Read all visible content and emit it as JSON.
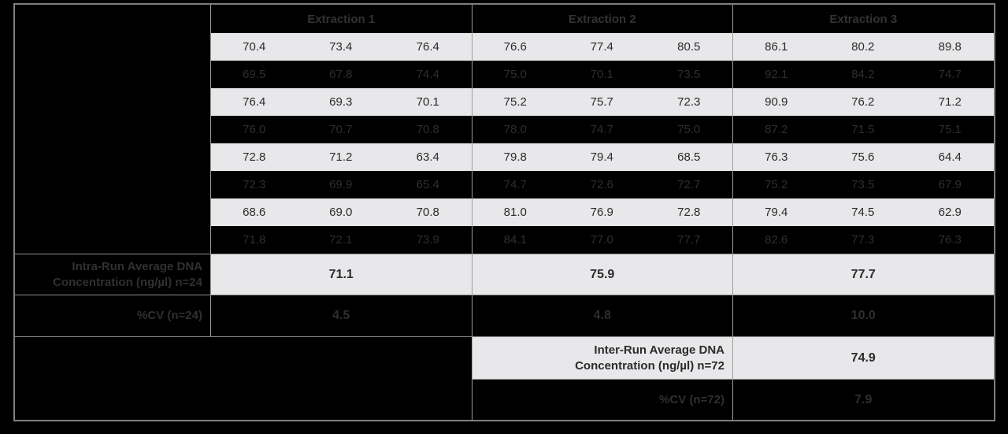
{
  "colors": {
    "page_bg": "#000000",
    "light_row_bg": "#e8e8ea",
    "dark_row_bg": "#000000",
    "light_row_text": "#2b2b2b",
    "dark_row_text": "#2e2e2e",
    "header_text": "#333333",
    "border_outer": "#7f7f7f",
    "border_inner": "#9c9c9c"
  },
  "chart_data": {
    "type": "table",
    "title": "",
    "group_headers": [
      "Extraction 1",
      "Extraction 2",
      "Extraction 3"
    ],
    "replicates_per_group": 3,
    "data_rows": [
      [
        "70.4",
        "73.4",
        "76.4",
        "76.6",
        "77.4",
        "80.5",
        "86.1",
        "80.2",
        "89.8"
      ],
      [
        "69.5",
        "67.8",
        "74.4",
        "75.0",
        "70.1",
        "73.5",
        "92.1",
        "84.2",
        "74.7"
      ],
      [
        "76.4",
        "69.3",
        "70.1",
        "75.2",
        "75.7",
        "72.3",
        "90.9",
        "76.2",
        "71.2"
      ],
      [
        "76.0",
        "70.7",
        "70.8",
        "78.0",
        "74.7",
        "75.0",
        "87.2",
        "71.5",
        "75.1"
      ],
      [
        "72.8",
        "71.2",
        "63.4",
        "79.8",
        "79.4",
        "68.5",
        "76.3",
        "75.6",
        "64.4"
      ],
      [
        "72.3",
        "69.9",
        "65.4",
        "74.7",
        "72.6",
        "72.7",
        "75.2",
        "73.5",
        "67.9"
      ],
      [
        "68.6",
        "69.0",
        "70.8",
        "81.0",
        "76.9",
        "72.8",
        "79.4",
        "74.5",
        "62.9"
      ],
      [
        "71.8",
        "72.1",
        "73.9",
        "84.1",
        "77.0",
        "77.7",
        "82.6",
        "77.3",
        "76.3"
      ]
    ],
    "summary": {
      "intra_run_label": "Intra-Run Average DNA Concentration (ng/µl) n=24",
      "intra_run_values": [
        "71.1",
        "75.9",
        "77.7"
      ],
      "cv24_label": "%CV (n=24)",
      "cv24_values": [
        "4.5",
        "4.8",
        "10.0"
      ],
      "inter_run_label": "Inter-Run Average DNA Concentration (ng/µl) n=72",
      "inter_run_value": "74.9",
      "cv72_label": "%CV (n=72)",
      "cv72_value": "7.9"
    }
  }
}
